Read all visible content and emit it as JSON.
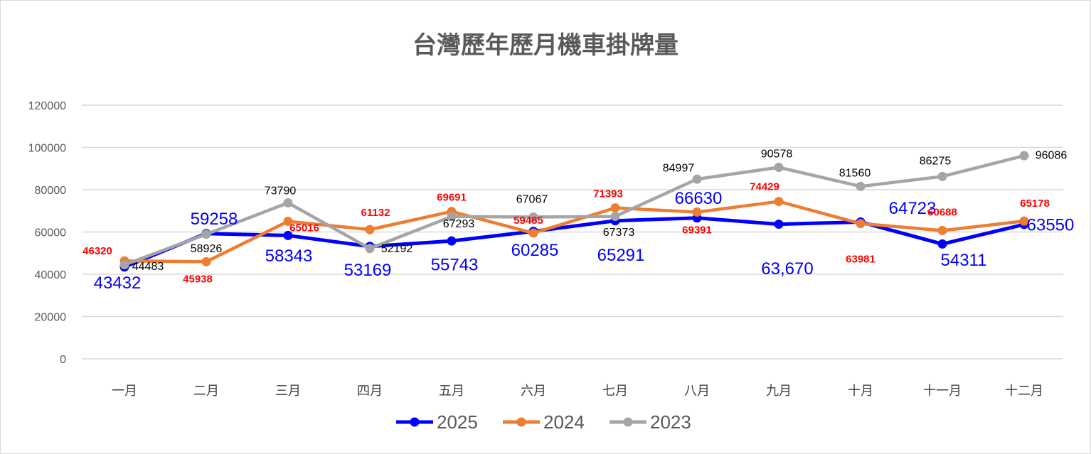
{
  "chart_data": {
    "type": "line",
    "title": "台灣歷年歷月機車掛牌量",
    "categories": [
      "一月",
      "二月",
      "三月",
      "四月",
      "五月",
      "六月",
      "七月",
      "八月",
      "九月",
      "十月",
      "十一月",
      "十二月"
    ],
    "ylim": [
      0,
      120000
    ],
    "yticks": [
      0,
      20000,
      40000,
      60000,
      80000,
      100000,
      120000
    ],
    "grid": true,
    "legend_position": "bottom",
    "series": [
      {
        "name": "2025",
        "color": "#0000ff",
        "label_color": "#0000ff",
        "values": [
          43432,
          59258,
          58343,
          53169,
          55743,
          60285,
          65291,
          66630,
          63670,
          64723,
          54311,
          63550
        ],
        "labels": [
          "43432",
          "59258",
          "58343",
          "53169",
          "55743",
          "60285",
          "65291",
          "66630",
          "63,670",
          "64723",
          "54311",
          "63550"
        ]
      },
      {
        "name": "2024",
        "color": "#ed7d31",
        "label_color": "#ff0000",
        "values": [
          46320,
          45938,
          65016,
          61132,
          69691,
          59485,
          71393,
          69391,
          74429,
          63981,
          60688,
          65178
        ],
        "labels": [
          "46320",
          "45938",
          "65016",
          "61132",
          "69691",
          "59485",
          "71393",
          "69391",
          "74429",
          "63981",
          "60688",
          "65178"
        ]
      },
      {
        "name": "2023",
        "color": "#a5a5a5",
        "label_color": "#000000",
        "values": [
          44483,
          58926,
          73790,
          52192,
          67293,
          67067,
          67373,
          84997,
          90578,
          81560,
          86275,
          96086
        ],
        "labels": [
          "44483",
          "58926",
          "73790",
          "52192",
          "67293",
          "67067",
          "67373",
          "84997",
          "90578",
          "81560",
          "86275",
          "96086"
        ]
      }
    ]
  }
}
